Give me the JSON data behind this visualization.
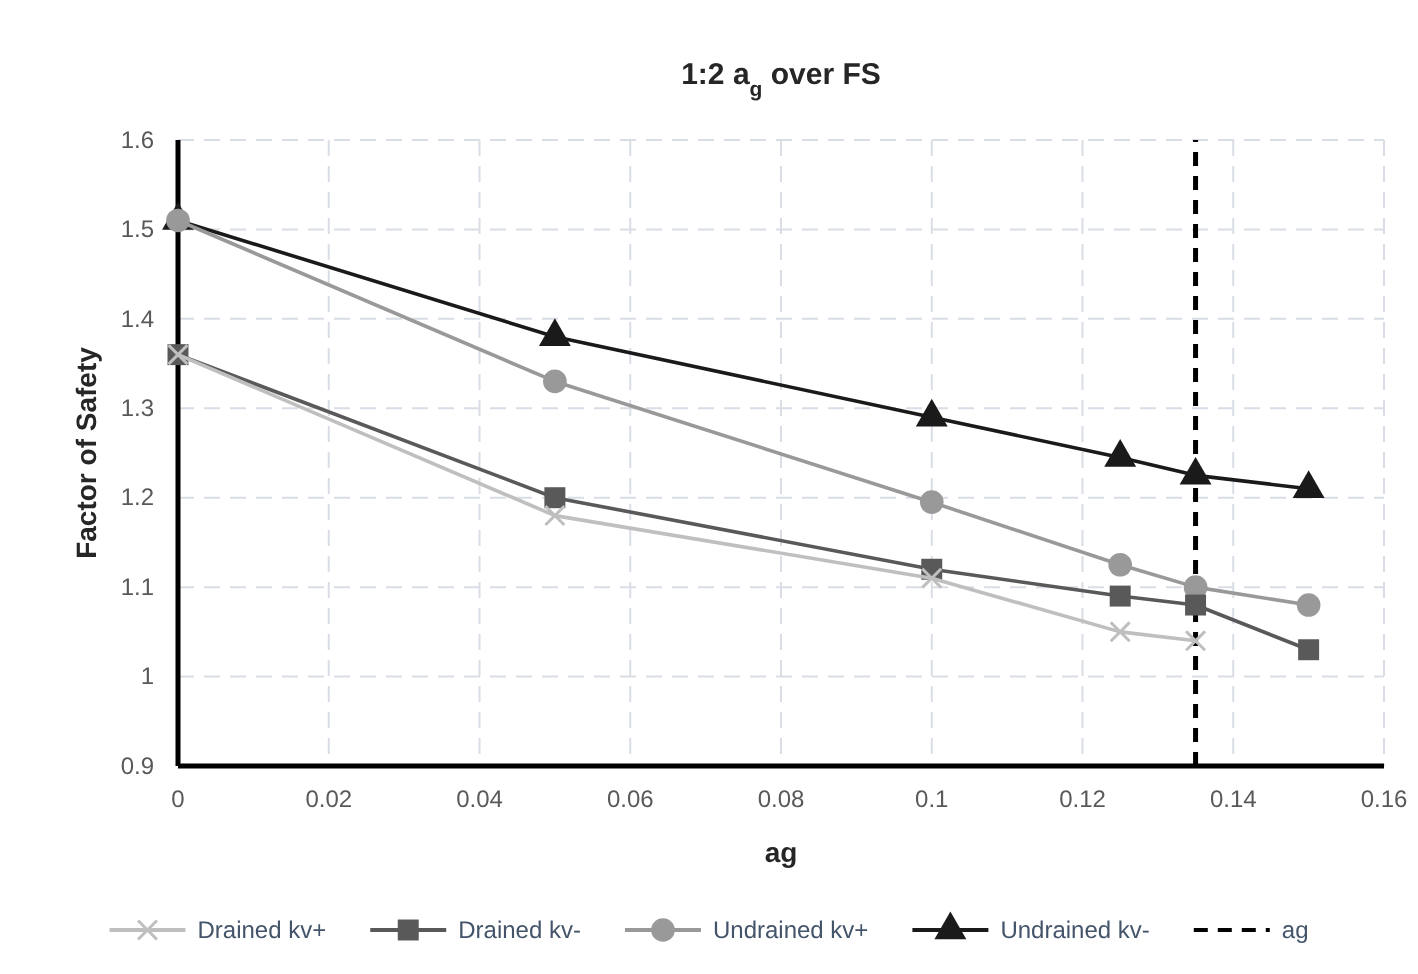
{
  "chart_data": {
    "type": "line",
    "title": "1:2 a$_{g}$ over FS",
    "xlabel": "ag",
    "ylabel": "Factor of Safety",
    "x": [
      0,
      0.05,
      0.1,
      0.125,
      0.135,
      0.15
    ],
    "series": [
      {
        "name": "Drained kv+",
        "color": "#bfbfbf",
        "marker": "cross",
        "values": [
          1.36,
          1.18,
          1.11,
          1.05,
          1.04,
          null
        ]
      },
      {
        "name": "Drained kv-",
        "color": "#595959",
        "marker": "square",
        "values": [
          1.36,
          1.2,
          1.12,
          1.09,
          1.08,
          1.03
        ]
      },
      {
        "name": "Undrained kv+",
        "color": "#999999",
        "marker": "circle",
        "values": [
          1.51,
          1.33,
          1.195,
          1.125,
          1.1,
          1.08
        ]
      },
      {
        "name": "Undrained kv-",
        "color": "#1a1a1a",
        "marker": "triangle",
        "values": [
          1.51,
          1.38,
          1.29,
          1.245,
          1.225,
          1.21
        ]
      },
      {
        "name": "ag",
        "color": "#000000",
        "marker": "none",
        "line_style": "dashed",
        "x": [
          0.135,
          0.135
        ],
        "values": [
          0.9,
          1.6
        ]
      }
    ],
    "xlim": [
      0,
      0.16
    ],
    "xticks": [
      0,
      0.02,
      0.04,
      0.06,
      0.08,
      0.1,
      0.12,
      0.14,
      0.16
    ],
    "ylim": [
      0.9,
      1.6
    ],
    "yticks": [
      0.9,
      1,
      1.1,
      1.2,
      1.3,
      1.4,
      1.5,
      1.6
    ],
    "grid": true,
    "legend": "bottom",
    "line_style": "solid"
  }
}
